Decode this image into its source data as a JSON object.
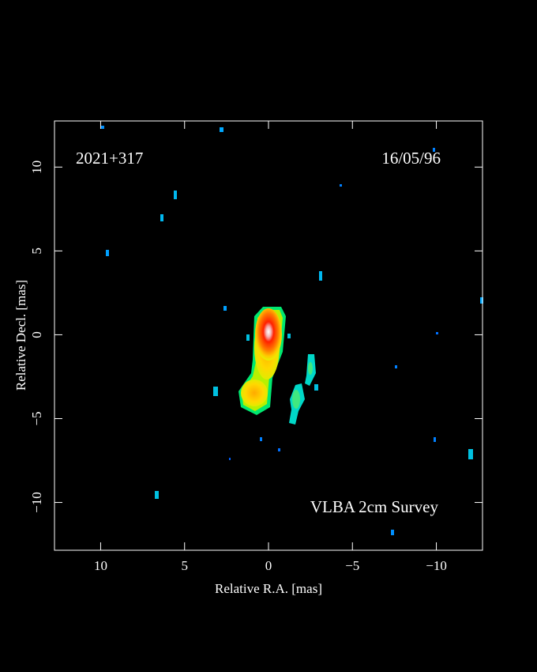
{
  "chart_data": {
    "type": "image",
    "title": "2021+317",
    "date": "16/05/96",
    "annotation": "VLBA 2cm Survey",
    "x_label": "Relative R.A. [mas]",
    "y_label": "Relative Decl. [mas]",
    "xlim": [
      12.75,
      -12.75
    ],
    "ylim": [
      -12.85,
      12.75
    ],
    "xticks": [
      10,
      5,
      0,
      {
        "value": -5,
        "label": "−5"
      },
      {
        "value": -10,
        "label": "−10"
      }
    ],
    "yticks": [
      {
        "value": -10,
        "label": "−10"
      },
      {
        "value": -5,
        "label": "−5"
      },
      0,
      5,
      10
    ]
  }
}
